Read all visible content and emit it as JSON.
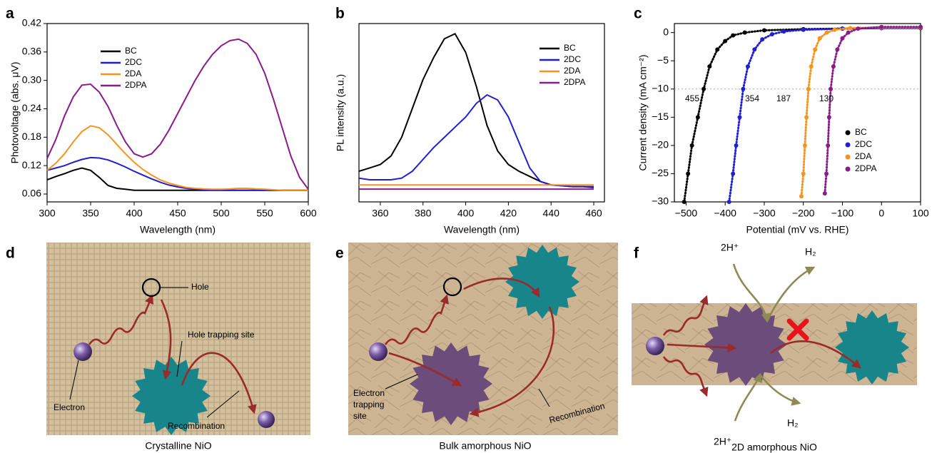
{
  "chart_data": [
    {
      "type": "line",
      "panel": "a",
      "xlabel": "Wavelength (nm)",
      "ylabel": "Photovoltage (abs. μV)",
      "x": [
        300,
        310,
        320,
        330,
        340,
        350,
        360,
        370,
        380,
        390,
        400,
        410,
        420,
        430,
        440,
        450,
        460,
        470,
        480,
        490,
        500,
        510,
        520,
        530,
        540,
        550,
        560,
        570,
        580,
        590,
        600
      ],
      "xlim": [
        300,
        600
      ],
      "xticks": [
        300,
        350,
        400,
        450,
        500,
        550,
        600
      ],
      "ylim": [
        0.0434,
        0.42
      ],
      "yticks": [
        0.06,
        0.12,
        0.18,
        0.24,
        {
          "value": 0.3,
          "label": "0.30"
        },
        0.36,
        0.42
      ],
      "series": [
        {
          "name": "BC",
          "color": "#000000",
          "values": [
            0.09,
            0.097,
            0.103,
            0.11,
            0.115,
            0.11,
            0.095,
            0.078,
            0.072,
            0.07,
            0.068,
            0.068,
            0.068,
            0.068,
            0.068,
            0.068,
            0.068,
            0.068,
            0.068,
            0.068,
            0.068,
            0.068,
            0.068,
            0.068,
            0.068,
            0.068,
            0.068,
            0.068,
            0.068,
            0.068,
            0.068
          ]
        },
        {
          "name": "2DC",
          "color": "#1f1fd6",
          "values": [
            0.11,
            0.115,
            0.12,
            0.127,
            0.133,
            0.137,
            0.136,
            0.132,
            0.125,
            0.117,
            0.108,
            0.1,
            0.092,
            0.085,
            0.079,
            0.075,
            0.072,
            0.07,
            0.069,
            0.068,
            0.068,
            0.068,
            0.068,
            0.068,
            0.068,
            0.068,
            0.068,
            0.068,
            0.068,
            0.068,
            0.068
          ]
        },
        {
          "name": "2DA",
          "color": "#f7941d",
          "values": [
            0.11,
            0.125,
            0.145,
            0.17,
            0.192,
            0.204,
            0.2,
            0.185,
            0.165,
            0.145,
            0.127,
            0.112,
            0.1,
            0.09,
            0.083,
            0.078,
            0.074,
            0.072,
            0.071,
            0.07,
            0.07,
            0.071,
            0.072,
            0.072,
            0.071,
            0.07,
            0.069,
            0.068,
            0.068,
            0.068,
            0.068
          ]
        },
        {
          "name": "2DPA",
          "color": "#8b1a8b",
          "values": [
            0.135,
            0.175,
            0.225,
            0.265,
            0.29,
            0.292,
            0.275,
            0.245,
            0.205,
            0.17,
            0.145,
            0.138,
            0.145,
            0.165,
            0.195,
            0.23,
            0.265,
            0.3,
            0.33,
            0.355,
            0.373,
            0.384,
            0.387,
            0.378,
            0.355,
            0.315,
            0.26,
            0.2,
            0.14,
            0.095,
            0.07
          ]
        }
      ]
    },
    {
      "type": "line",
      "panel": "b",
      "xlabel": "Wavelength (nm)",
      "ylabel": "PL intensity (a.u.)",
      "x": [
        350,
        355,
        360,
        365,
        370,
        375,
        380,
        385,
        390,
        395,
        400,
        405,
        410,
        415,
        420,
        425,
        430,
        435,
        440,
        445,
        450,
        455,
        460
      ],
      "xlim": [
        350,
        465
      ],
      "xticks": [
        360,
        380,
        400,
        420,
        440,
        460
      ],
      "ylim": [
        0,
        1.05
      ],
      "yticks": [],
      "series": [
        {
          "name": "BC",
          "color": "#000000",
          "values": [
            0.18,
            0.2,
            0.22,
            0.27,
            0.38,
            0.55,
            0.72,
            0.85,
            0.96,
            0.99,
            0.88,
            0.68,
            0.45,
            0.3,
            0.22,
            0.18,
            0.15,
            0.12,
            0.1,
            0.095,
            0.09,
            0.09,
            0.085
          ]
        },
        {
          "name": "2DC",
          "color": "#1f1fd6",
          "values": [
            0.14,
            0.13,
            0.13,
            0.13,
            0.14,
            0.18,
            0.25,
            0.32,
            0.38,
            0.44,
            0.5,
            0.58,
            0.63,
            0.6,
            0.5,
            0.35,
            0.2,
            0.12,
            0.1,
            0.095,
            0.09,
            0.09,
            0.09
          ]
        },
        {
          "name": "2DA",
          "color": "#f7941d",
          "values": [
            0.1,
            0.1,
            0.1,
            0.1,
            0.1,
            0.1,
            0.1,
            0.1,
            0.1,
            0.1,
            0.1,
            0.1,
            0.1,
            0.1,
            0.1,
            0.1,
            0.1,
            0.1,
            0.1,
            0.1,
            0.1,
            0.1,
            0.1
          ]
        },
        {
          "name": "2DPA",
          "color": "#8b1a8b",
          "values": [
            0.075,
            0.075,
            0.075,
            0.075,
            0.075,
            0.075,
            0.075,
            0.075,
            0.075,
            0.075,
            0.075,
            0.075,
            0.075,
            0.075,
            0.075,
            0.075,
            0.075,
            0.075,
            0.075,
            0.075,
            0.075,
            0.075,
            0.075
          ]
        }
      ]
    },
    {
      "type": "scatter",
      "panel": "c",
      "xlabel": "Potential (mV vs. RHE)",
      "ylabel": "Current density (mA cm⁻²)",
      "xlim": [
        -530,
        100
      ],
      "xticks": [
        {
          "value": -500,
          "label": "−500"
        },
        {
          "value": -400,
          "label": "−400"
        },
        {
          "value": -300,
          "label": "−300"
        },
        {
          "value": -200,
          "label": "−200"
        },
        {
          "value": -100,
          "label": "−100"
        },
        0,
        100
      ],
      "ylim": [
        -30,
        1.6
      ],
      "yticks": [
        0,
        {
          "value": -5,
          "label": "−5"
        },
        {
          "value": -10,
          "label": "−10"
        },
        {
          "value": -15,
          "label": "−15"
        },
        {
          "value": -20,
          "label": "−20"
        },
        {
          "value": -25,
          "label": "−25"
        },
        {
          "value": -30,
          "label": "−30"
        }
      ],
      "hline": -10,
      "annotations": [
        "455",
        "354",
        "187",
        "130"
      ],
      "series": [
        {
          "name": "BC",
          "color": "#000000",
          "x": [
            -505,
            -495,
            -485,
            -470,
            -455,
            -440,
            -420,
            -400,
            -380,
            -350,
            -300,
            -200,
            -100,
            0,
            100
          ],
          "values": [
            -30,
            -25,
            -20,
            -15,
            -10,
            -6,
            -3,
            -1.5,
            -0.5,
            0,
            0.4,
            0.6,
            0.7,
            0.8,
            0.8
          ]
        },
        {
          "name": "2DC",
          "color": "#1f1fd6",
          "x": [
            -390,
            -380,
            -372,
            -363,
            -354,
            -342,
            -325,
            -305,
            -280,
            -250,
            -200,
            -100,
            0,
            100
          ],
          "values": [
            -30,
            -25,
            -20,
            -15,
            -10,
            -6,
            -3,
            -1.2,
            -0.3,
            0.2,
            0.5,
            0.7,
            0.8,
            0.8
          ]
        },
        {
          "name": "2DA",
          "color": "#f7941d",
          "x": [
            -205,
            -200,
            -196,
            -192,
            -187,
            -180,
            -170,
            -158,
            -140,
            -120,
            -80,
            0,
            100
          ],
          "values": [
            -29,
            -25,
            -20,
            -15,
            -10,
            -6,
            -3,
            -1,
            0,
            0.5,
            0.8,
            0.9,
            0.9
          ]
        },
        {
          "name": "2DPA",
          "color": "#8b1a8b",
          "x": [
            -145,
            -141,
            -137,
            -134,
            -130,
            -123,
            -113,
            -100,
            -85,
            -60,
            0,
            100
          ],
          "values": [
            -28.5,
            -25,
            -20,
            -15,
            -10,
            -6,
            -3,
            -1,
            0,
            0.7,
            1,
            1
          ]
        }
      ]
    }
  ],
  "diagrams": [
    {
      "label": "d",
      "caption": "Crystalline NiO",
      "texts": [
        "Hole",
        "Hole trapping site",
        "Electron",
        "Recombination"
      ]
    },
    {
      "label": "e",
      "caption": "Bulk amorphous NiO",
      "texts": [
        "Electron",
        "trapping",
        "site",
        "Recombination"
      ]
    },
    {
      "label": "f",
      "caption": "2D amorphous NiO",
      "texts": [
        "2H⁺",
        "H₂",
        "H₂",
        "2H⁺"
      ]
    }
  ]
}
